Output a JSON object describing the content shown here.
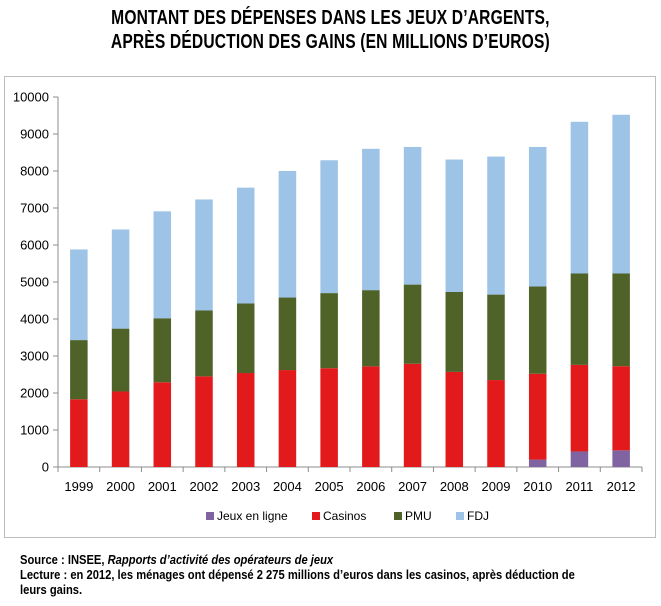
{
  "title_line1": "MONTANT DES DÉPENSES DANS LES JEUX D’ARGENTS,",
  "title_line2": "APRÈS DÉDUCTION DES GAINS (EN MILLIONS D’EUROS)",
  "footer": {
    "source_label": "Source : INSEE, ",
    "source_italic": "Rapports d’activité des opérateurs de jeux",
    "lecture_line1": "Lecture : en 2012, les ménages ont dépensé 2 275 millions d’euros dans les casinos, après déduction de",
    "lecture_line2": "leurs gains."
  },
  "chart_data": {
    "type": "bar",
    "stacked": true,
    "title": "MONTANT DES DÉPENSES DANS LES JEUX D’ARGENTS, APRÈS DÉDUCTION DES GAINS (EN MILLIONS D’EUROS)",
    "xlabel": "",
    "ylabel": "",
    "ylim": [
      0,
      10000
    ],
    "yticks": [
      0,
      1000,
      2000,
      3000,
      4000,
      5000,
      6000,
      7000,
      8000,
      9000,
      10000
    ],
    "grid": false,
    "legend_position": "bottom",
    "categories": [
      "1999",
      "2000",
      "2001",
      "2002",
      "2003",
      "2004",
      "2005",
      "2006",
      "2007",
      "2008",
      "2009",
      "2010",
      "2011",
      "2012"
    ],
    "series": [
      {
        "name": "Jeux en ligne",
        "color": "#8064a2",
        "values": [
          0,
          0,
          0,
          0,
          0,
          0,
          0,
          0,
          0,
          0,
          0,
          200,
          420,
          450
        ]
      },
      {
        "name": "Casinos",
        "color": "#e31a1c",
        "values": [
          1830,
          2040,
          2290,
          2450,
          2540,
          2620,
          2670,
          2720,
          2790,
          2570,
          2350,
          2320,
          2340,
          2275
        ]
      },
      {
        "name": "PMU",
        "color": "#4f6228",
        "values": [
          1600,
          1700,
          1730,
          1780,
          1880,
          1960,
          2030,
          2060,
          2140,
          2160,
          2310,
          2360,
          2470,
          2505
        ]
      },
      {
        "name": "FDJ",
        "color": "#9dc3e6",
        "values": [
          2450,
          2680,
          2890,
          3000,
          3130,
          3420,
          3590,
          3820,
          3720,
          3580,
          3730,
          3770,
          4100,
          4290
        ]
      }
    ]
  }
}
